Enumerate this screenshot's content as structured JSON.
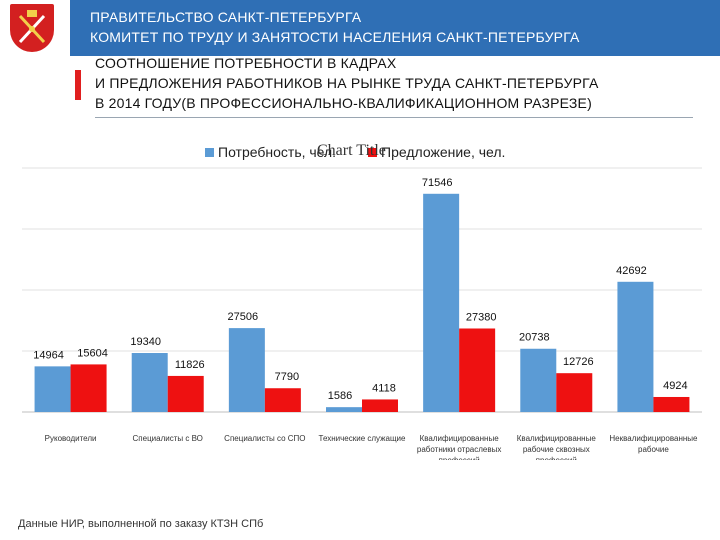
{
  "header": {
    "line1": "ПРАВИТЕЛЬСТВО САНКТ-ПЕТЕРБУРГА",
    "line2": "КОМИТЕТ ПО ТРУДУ И ЗАНЯТОСТИ НАСЕЛЕНИЯ САНКТ-ПЕТЕРБУРГА",
    "logo_icon": "st-petersburg-coat-of-arms-icon"
  },
  "subtitle": {
    "line1": "СООТНОШЕНИЕ ПОТРЕБНОСТИ В КАДРАХ",
    "line2": "И ПРЕДЛОЖЕНИЯ РАБОТНИКОВ НА РЫНКЕ ТРУДА САНКТ-ПЕТЕРБУРГА",
    "line3": "В 2014 ГОДУ(В ПРОФЕССИОНАЛЬНО-КВАЛИФИКАЦИОННОМ РАЗРЕЗЕ)"
  },
  "footnote": "Данные НИР, выполненной по заказу КТЗН СПб",
  "colors": {
    "header_band": "#2f6fb5",
    "accent_red": "#e01f1f",
    "series_demand": "#5b9bd5",
    "series_supply": "#ee1111"
  },
  "chart_data": {
    "type": "bar",
    "title": "Chart Title",
    "categories": [
      "Руководители",
      "Специалисты с ВО",
      "Специалисты со СПО",
      "Технические служащие",
      "Квалифицированные работники отраслевых профессий",
      "Квалифицированные рабочие сквозных профессий",
      "Неквалифицированные рабочие"
    ],
    "category_lines": [
      [
        "Руководители"
      ],
      [
        "Специалисты с ВО"
      ],
      [
        "Специалисты со СПО"
      ],
      [
        "Технические служащие"
      ],
      [
        "Квалифицированные",
        "работники отраслевых",
        "профессий"
      ],
      [
        "Квалифицированные",
        "рабочие сквозных",
        "профессий"
      ],
      [
        "Неквалифицированные",
        "рабочие"
      ]
    ],
    "series": [
      {
        "name": "Потребность, чел.",
        "color": "#5b9bd5",
        "values": [
          14964,
          19340,
          27506,
          1586,
          71546,
          20738,
          42692
        ]
      },
      {
        "name": "Предложение, чел.",
        "color": "#ee1111",
        "values": [
          15604,
          11826,
          7790,
          4118,
          27380,
          12726,
          4924
        ]
      }
    ],
    "ylim": [
      0,
      80000
    ],
    "grid": true,
    "legend_position": "top"
  }
}
